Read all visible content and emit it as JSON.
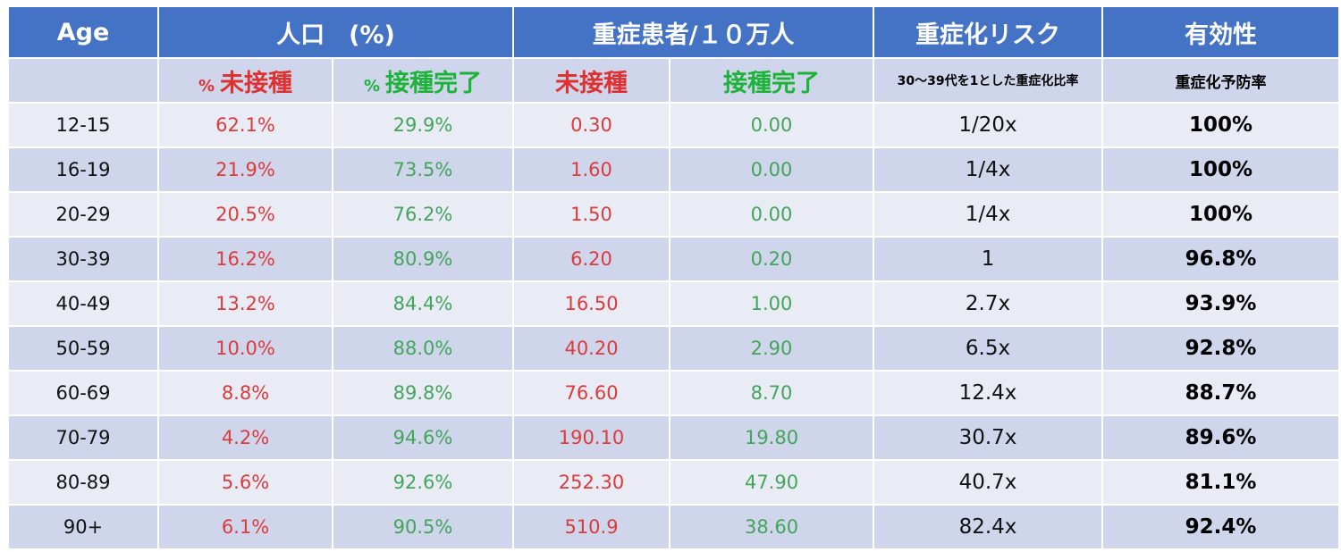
{
  "header": {
    "age": "Age",
    "population": "人口　(%)",
    "severe_per_100k": "重症患者/１０万人",
    "risk": "重症化リスク",
    "effectiveness": "有効性"
  },
  "subheader": {
    "pct_symbol": "%",
    "unvaccinated": "未接種",
    "vaccinated": "接種完了",
    "risk_note": "30～39代を1とした重症化比率",
    "effectiveness_note": "重症化予防率"
  },
  "rows": [
    {
      "age": "12-15",
      "pop_unvax": "62.1%",
      "pop_vax": "29.9%",
      "sev_unvax": "0.30",
      "sev_vax": "0.00",
      "risk": "1/20x",
      "eff": "100%"
    },
    {
      "age": "16-19",
      "pop_unvax": "21.9%",
      "pop_vax": "73.5%",
      "sev_unvax": "1.60",
      "sev_vax": "0.00",
      "risk": "1/4x",
      "eff": "100%"
    },
    {
      "age": "20-29",
      "pop_unvax": "20.5%",
      "pop_vax": "76.2%",
      "sev_unvax": "1.50",
      "sev_vax": "0.00",
      "risk": "1/4x",
      "eff": "100%"
    },
    {
      "age": "30-39",
      "pop_unvax": "16.2%",
      "pop_vax": "80.9%",
      "sev_unvax": "6.20",
      "sev_vax": "0.20",
      "risk": "1",
      "eff": "96.8%"
    },
    {
      "age": "40-49",
      "pop_unvax": "13.2%",
      "pop_vax": "84.4%",
      "sev_unvax": "16.50",
      "sev_vax": "1.00",
      "risk": "2.7x",
      "eff": "93.9%"
    },
    {
      "age": "50-59",
      "pop_unvax": "10.0%",
      "pop_vax": "88.0%",
      "sev_unvax": "40.20",
      "sev_vax": "2.90",
      "risk": "6.5x",
      "eff": "92.8%"
    },
    {
      "age": "60-69",
      "pop_unvax": "8.8%",
      "pop_vax": "89.8%",
      "sev_unvax": "76.60",
      "sev_vax": "8.70",
      "risk": "12.4x",
      "eff": "88.7%"
    },
    {
      "age": "70-79",
      "pop_unvax": "4.2%",
      "pop_vax": "94.6%",
      "sev_unvax": "190.10",
      "sev_vax": "19.80",
      "risk": "30.7x",
      "eff": "89.6%"
    },
    {
      "age": "80-89",
      "pop_unvax": "5.6%",
      "pop_vax": "92.6%",
      "sev_unvax": "252.30",
      "sev_vax": "47.90",
      "risk": "40.7x",
      "eff": "81.1%"
    },
    {
      "age": "90+",
      "pop_unvax": "6.1%",
      "pop_vax": "90.5%",
      "sev_unvax": "510.9",
      "sev_vax": "38.60",
      "risk": "82.4x",
      "eff": "92.4%"
    }
  ],
  "colors": {
    "header_bg": "#4472C4",
    "row_light": "#E9EBF5",
    "row_dark": "#CFD5EA",
    "red": "#DC3B3B",
    "green": "#43A55A"
  }
}
